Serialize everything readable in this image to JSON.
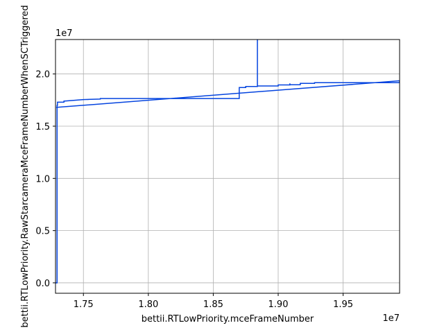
{
  "chart_data": {
    "type": "line",
    "title": "",
    "xlabel": "bettii.RTLowPriority.mceFrameNumber",
    "ylabel": "bettii.RTLowPriority.RawStarcameraMceFrameNumberWhenSCTriggered",
    "x_offset_label": "1e7",
    "y_offset_label": "1e7",
    "xlim": [
      1.7285,
      1.9935
    ],
    "ylim": [
      -0.1,
      2.33
    ],
    "grid": true,
    "line_color": "#0343df",
    "x_ticks": [
      {
        "value": 1.75,
        "label": "1.75"
      },
      {
        "value": 1.8,
        "label": "1.80"
      },
      {
        "value": 1.85,
        "label": "1.85"
      },
      {
        "value": 1.9,
        "label": "1.90"
      },
      {
        "value": 1.95,
        "label": "1.95"
      }
    ],
    "y_ticks": [
      {
        "value": 0.0,
        "label": "0.0"
      },
      {
        "value": 0.5,
        "label": "0.5"
      },
      {
        "value": 1.0,
        "label": "1.0"
      },
      {
        "value": 1.5,
        "label": "1.5"
      },
      {
        "value": 2.0,
        "label": "2.0"
      }
    ],
    "series": [
      {
        "x": [
          1.7287,
          1.7297,
          1.7297,
          1.73,
          1.73,
          1.735,
          1.735,
          1.74,
          1.75,
          1.763,
          1.763,
          1.87,
          1.87,
          1.875,
          1.875,
          1.884,
          1.884,
          1.884,
          1.884,
          1.9,
          1.9,
          1.909,
          1.909,
          1.909,
          1.909,
          1.917,
          1.917,
          1.928,
          1.928,
          1.9935,
          1.9935,
          1.729
        ],
        "y": [
          0.0,
          0.0,
          1.7,
          1.7,
          1.73,
          1.73,
          1.74,
          1.745,
          1.755,
          1.76,
          1.765,
          1.765,
          1.87,
          1.87,
          1.88,
          1.88,
          2.35,
          2.35,
          1.885,
          1.885,
          1.895,
          1.895,
          1.91,
          1.91,
          1.897,
          1.897,
          1.91,
          1.91,
          1.917,
          1.917,
          1.935,
          1.68
        ]
      }
    ]
  }
}
